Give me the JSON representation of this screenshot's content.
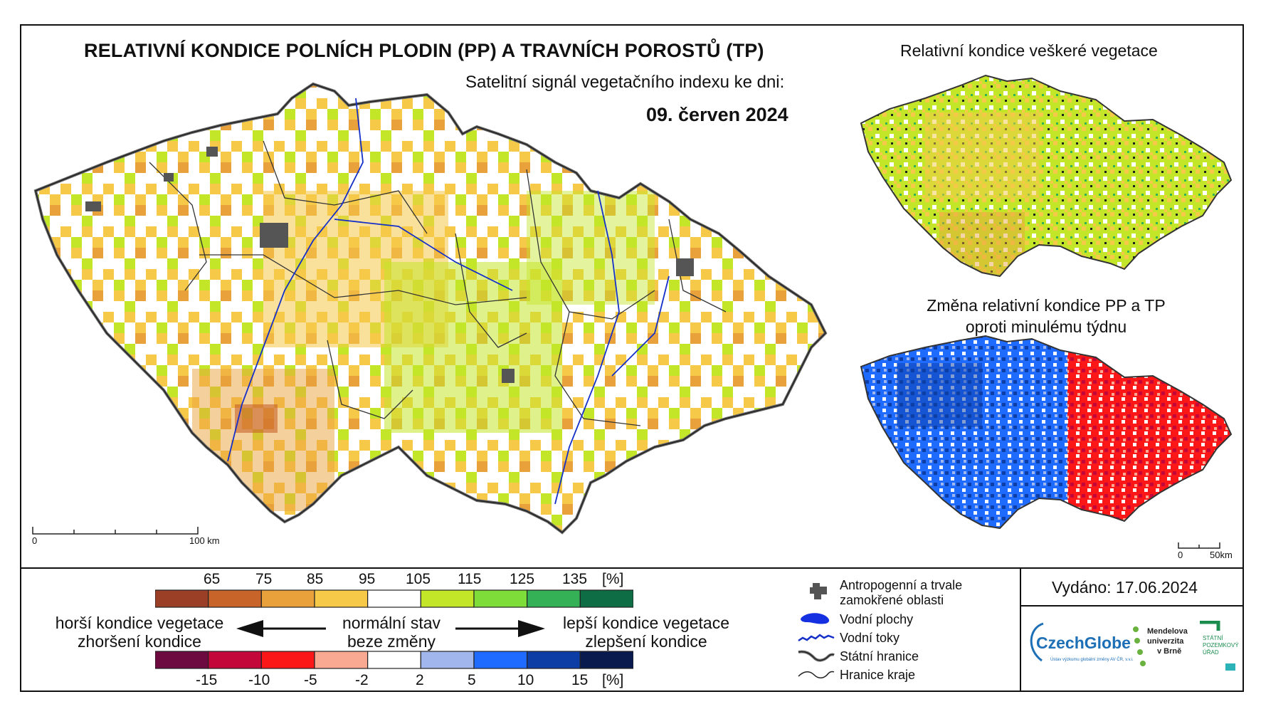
{
  "header": {
    "title": "RELATIVNÍ KONDICE POLNÍCH PLODIN (PP) A TRAVNÍCH POROSTŮ (TP)",
    "subtitle": "Satelitní signál vegetačního indexu ke dni:",
    "date": "09. červen 2024"
  },
  "inset_maps": {
    "top_title": "Relativní kondice veškeré vegetace",
    "bottom_title_line1": "Změna relativní kondice PP a TP",
    "bottom_title_line2": "oproti minulému týdnu"
  },
  "scale_bars": {
    "main": {
      "start": "0",
      "end": "100 km"
    },
    "inset": {
      "start": "0",
      "end": "50km"
    }
  },
  "legend": {
    "condition_scale": {
      "labels": [
        "65",
        "75",
        "85",
        "95",
        "105",
        "115",
        "125",
        "135",
        "[%]"
      ],
      "colors": [
        "#9b3f27",
        "#c8632a",
        "#e9a23b",
        "#f6c949",
        "#ffffff",
        "#c4e629",
        "#7fdd39",
        "#34b057",
        "#0f6d46"
      ]
    },
    "change_scale": {
      "labels": [
        "-15",
        "-10",
        "-5",
        "-2",
        "2",
        "5",
        "10",
        "15",
        "[%]"
      ],
      "colors": [
        "#6d0a3f",
        "#c4073b",
        "#fb1717",
        "#f9a892",
        "#ffffff",
        "#a2b6ee",
        "#1f6bff",
        "#0c3ea6",
        "#091a4e"
      ]
    },
    "left_text_line1": "horší kondice vegetace",
    "left_text_line2": "zhoršení kondice",
    "center_text_line1": "normální stav",
    "center_text_line2": "beze změny",
    "right_text_line1": "lepší kondice vegetace",
    "right_text_line2": "zlepšení kondice"
  },
  "map_legend": [
    {
      "icon": "urban-area-icon",
      "label_line1": "Antropogenní a trvale",
      "label_line2": "zamokřené oblasti"
    },
    {
      "icon": "water-body-icon",
      "label_line1": "Vodní plochy",
      "label_line2": ""
    },
    {
      "icon": "river-icon",
      "label_line1": "Vodní toky",
      "label_line2": ""
    },
    {
      "icon": "state-border-icon",
      "label_line1": "Státní hranice",
      "label_line2": ""
    },
    {
      "icon": "region-border-icon",
      "label_line1": "Hranice kraje",
      "label_line2": ""
    }
  ],
  "issued": "Vydáno: 17.06.2024",
  "logos": {
    "czechglobe": "CzechGlobe",
    "czechglobe_sub": "Ústav výzkumu globální změny AV ČR, v.v.i.",
    "mendel_line1": "Mendelova",
    "mendel_line2": "univerzita",
    "mendel_line3": "v Brně",
    "spu_line1": "STÁTNÍ",
    "spu_line2": "POZEMKOVÝ",
    "spu_line3": "ÚŘAD"
  }
}
